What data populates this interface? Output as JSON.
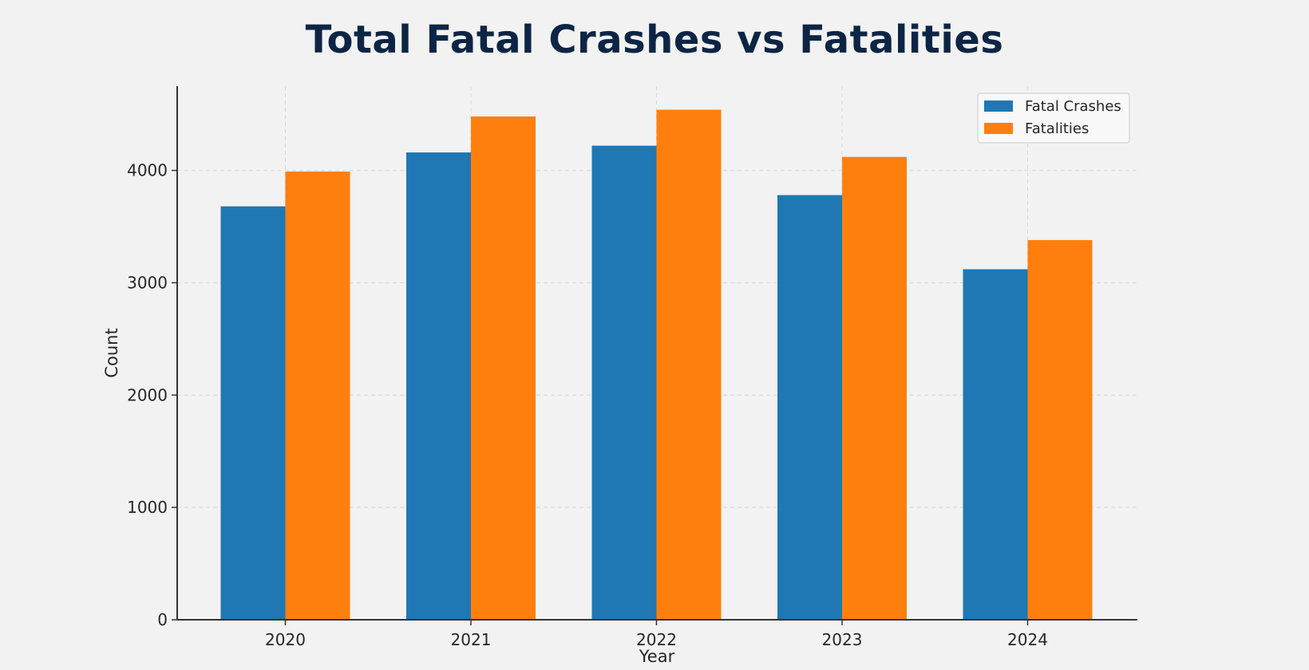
{
  "chart_data": {
    "type": "bar",
    "title": "Total Fatal Crashes vs Fatalities",
    "xlabel": "Year",
    "ylabel": "Count",
    "categories": [
      "2020",
      "2021",
      "2022",
      "2023",
      "2024"
    ],
    "series": [
      {
        "name": "Fatal Crashes",
        "color": "#1f77b4",
        "values": [
          3680,
          4160,
          4220,
          3780,
          3120
        ]
      },
      {
        "name": "Fatalities",
        "color": "#ff7f0e",
        "values": [
          3990,
          4480,
          4540,
          4120,
          3380
        ]
      }
    ],
    "ylim": [
      0,
      4750
    ],
    "yticks": [
      0,
      1000,
      2000,
      3000,
      4000
    ],
    "ytick_labels": [
      "0",
      "1000",
      "2000",
      "3000",
      "4000"
    ],
    "grid": true,
    "legend_position": "top-right"
  }
}
